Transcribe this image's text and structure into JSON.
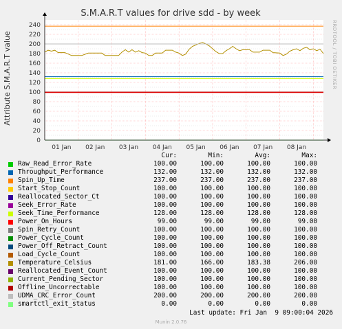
{
  "chart_data": {
    "type": "line",
    "title": "S.M.A.R.T values for drive sdd - by week",
    "ylabel": "Attribute S.M.A.R.T value",
    "side_label": "RRDTOOL / TOBI OETIKER",
    "ylim": [
      0,
      250
    ],
    "yticks": [
      0,
      20,
      40,
      60,
      80,
      100,
      120,
      140,
      160,
      180,
      200,
      220,
      240
    ],
    "xticks": [
      "01 Jan",
      "02 Jan",
      "03 Jan",
      "04 Jan",
      "05 Jan",
      "06 Jan",
      "07 Jan",
      "08 Jan"
    ],
    "xtick_positions": [
      0.5,
      1.5,
      2.5,
      3.5,
      4.5,
      5.5,
      6.5,
      7.5
    ],
    "xlim": [
      0,
      8.3
    ],
    "grid": true,
    "series": [
      {
        "name": "Raw_Read_Error_Rate",
        "color": "#00cc00",
        "const": 100
      },
      {
        "name": "Throughput_Performance",
        "color": "#0066b3",
        "const": 132
      },
      {
        "name": "Spin_Up_Time",
        "color": "#ff8000",
        "const": 237
      },
      {
        "name": "Start_Stop_Count",
        "color": "#ffcc00",
        "const": 100
      },
      {
        "name": "Reallocated_Sector_Ct",
        "color": "#330099",
        "const": 100
      },
      {
        "name": "Seek_Error_Rate",
        "color": "#990099",
        "const": 100
      },
      {
        "name": "Seek_Time_Performance",
        "color": "#ccff00",
        "const": 128
      },
      {
        "name": "Power_On_Hours",
        "color": "#ff0000",
        "const": 99
      },
      {
        "name": "Spin_Retry_Count",
        "color": "#808080",
        "const": 100
      },
      {
        "name": "Power_Cycle_Count",
        "color": "#008f00",
        "const": 100
      },
      {
        "name": "Power_Off_Retract_Count",
        "color": "#00487d",
        "const": 100
      },
      {
        "name": "Load_Cycle_Count",
        "color": "#b35a00",
        "const": 100
      },
      {
        "name": "Temperature_Celsius",
        "color": "#b38f00",
        "values": [
          [
            0.0,
            183
          ],
          [
            0.1,
            187
          ],
          [
            0.2,
            185
          ],
          [
            0.3,
            187
          ],
          [
            0.4,
            182
          ],
          [
            0.6,
            182
          ],
          [
            0.8,
            176
          ],
          [
            1.1,
            176
          ],
          [
            1.3,
            181
          ],
          [
            1.7,
            181
          ],
          [
            1.8,
            176
          ],
          [
            2.2,
            176
          ],
          [
            2.3,
            183
          ],
          [
            2.4,
            188
          ],
          [
            2.5,
            183
          ],
          [
            2.6,
            188
          ],
          [
            2.7,
            183
          ],
          [
            2.8,
            186
          ],
          [
            2.9,
            182
          ],
          [
            3.0,
            181
          ],
          [
            3.1,
            176
          ],
          [
            3.2,
            176
          ],
          [
            3.3,
            181
          ],
          [
            3.5,
            181
          ],
          [
            3.6,
            187
          ],
          [
            3.8,
            187
          ],
          [
            3.9,
            183
          ],
          [
            4.0,
            181
          ],
          [
            4.1,
            176
          ],
          [
            4.2,
            179
          ],
          [
            4.3,
            189
          ],
          [
            4.4,
            195
          ],
          [
            4.5,
            198
          ],
          [
            4.6,
            201
          ],
          [
            4.7,
            203
          ],
          [
            4.8,
            200
          ],
          [
            4.9,
            196
          ],
          [
            5.0,
            190
          ],
          [
            5.1,
            184
          ],
          [
            5.2,
            180
          ],
          [
            5.3,
            180
          ],
          [
            5.4,
            186
          ],
          [
            5.5,
            190
          ],
          [
            5.6,
            195
          ],
          [
            5.7,
            190
          ],
          [
            5.8,
            186
          ],
          [
            5.9,
            188
          ],
          [
            6.1,
            188
          ],
          [
            6.2,
            183
          ],
          [
            6.4,
            183
          ],
          [
            6.5,
            187
          ],
          [
            6.7,
            187
          ],
          [
            6.8,
            182
          ],
          [
            7.0,
            181
          ],
          [
            7.1,
            176
          ],
          [
            7.2,
            179
          ],
          [
            7.3,
            185
          ],
          [
            7.4,
            188
          ],
          [
            7.5,
            190
          ],
          [
            7.6,
            186
          ],
          [
            7.7,
            191
          ],
          [
            7.8,
            193
          ],
          [
            7.9,
            188
          ],
          [
            8.0,
            190
          ],
          [
            8.1,
            186
          ],
          [
            8.2,
            189
          ],
          [
            8.3,
            180
          ]
        ]
      },
      {
        "name": "Reallocated_Event_Count",
        "color": "#8fb300",
        "const": 100
      },
      {
        "name": "Current_Pending_Sector",
        "color": "#8fb300",
        "const": 100
      },
      {
        "name": "Offline_Uncorrectable",
        "color": "#b30000",
        "const": 100
      },
      {
        "name": "UDMA_CRC_Error_Count",
        "color": "#bebebe",
        "const": 200
      },
      {
        "name": "smartctl_exit_status",
        "color": "#80ff80",
        "const": 0
      }
    ]
  },
  "legend": {
    "headers": [
      "Cur:",
      "Min:",
      "Avg:",
      "Max:"
    ],
    "rows": [
      {
        "name": "Raw_Read_Error_Rate",
        "color": "#00cc00",
        "cur": "100.00",
        "min": "100.00",
        "avg": "100.00",
        "max": "100.00"
      },
      {
        "name": "Throughput_Performance",
        "color": "#0066b3",
        "cur": "132.00",
        "min": "132.00",
        "avg": "132.00",
        "max": "132.00"
      },
      {
        "name": "Spin_Up_Time",
        "color": "#ff8000",
        "cur": "237.00",
        "min": "237.00",
        "avg": "237.00",
        "max": "237.00"
      },
      {
        "name": "Start_Stop_Count",
        "color": "#ffcc00",
        "cur": "100.00",
        "min": "100.00",
        "avg": "100.00",
        "max": "100.00"
      },
      {
        "name": "Reallocated_Sector_Ct",
        "color": "#330099",
        "cur": "100.00",
        "min": "100.00",
        "avg": "100.00",
        "max": "100.00"
      },
      {
        "name": "Seek_Error_Rate",
        "color": "#990099",
        "cur": "100.00",
        "min": "100.00",
        "avg": "100.00",
        "max": "100.00"
      },
      {
        "name": "Seek_Time_Performance",
        "color": "#ccff00",
        "cur": "128.00",
        "min": "128.00",
        "avg": "128.00",
        "max": "128.00"
      },
      {
        "name": "Power_On_Hours",
        "color": "#ff0000",
        "cur": "99.00",
        "min": "99.00",
        "avg": "99.00",
        "max": "99.00"
      },
      {
        "name": "Spin_Retry_Count",
        "color": "#808080",
        "cur": "100.00",
        "min": "100.00",
        "avg": "100.00",
        "max": "100.00"
      },
      {
        "name": "Power_Cycle_Count",
        "color": "#008f00",
        "cur": "100.00",
        "min": "100.00",
        "avg": "100.00",
        "max": "100.00"
      },
      {
        "name": "Power_Off_Retract_Count",
        "color": "#00487d",
        "cur": "100.00",
        "min": "100.00",
        "avg": "100.00",
        "max": "100.00"
      },
      {
        "name": "Load_Cycle_Count",
        "color": "#b35a00",
        "cur": "100.00",
        "min": "100.00",
        "avg": "100.00",
        "max": "100.00"
      },
      {
        "name": "Temperature_Celsius",
        "color": "#b38f00",
        "cur": "181.00",
        "min": "166.00",
        "avg": "183.38",
        "max": "206.00"
      },
      {
        "name": "Reallocated_Event_Count",
        "color": "#6b006b",
        "cur": "100.00",
        "min": "100.00",
        "avg": "100.00",
        "max": "100.00"
      },
      {
        "name": "Current_Pending_Sector",
        "color": "#8fb300",
        "cur": "100.00",
        "min": "100.00",
        "avg": "100.00",
        "max": "100.00"
      },
      {
        "name": "Offline_Uncorrectable",
        "color": "#b30000",
        "cur": "100.00",
        "min": "100.00",
        "avg": "100.00",
        "max": "100.00"
      },
      {
        "name": "UDMA_CRC_Error_Count",
        "color": "#bebebe",
        "cur": "200.00",
        "min": "200.00",
        "avg": "200.00",
        "max": "200.00"
      },
      {
        "name": "smartctl_exit_status",
        "color": "#80ff80",
        "cur": "0.00",
        "min": "0.00",
        "avg": "0.00",
        "max": "0.00"
      }
    ]
  },
  "last_update": "Last update: Fri Jan  9 09:00:04 2026",
  "footer": "Munin 2.0.76"
}
